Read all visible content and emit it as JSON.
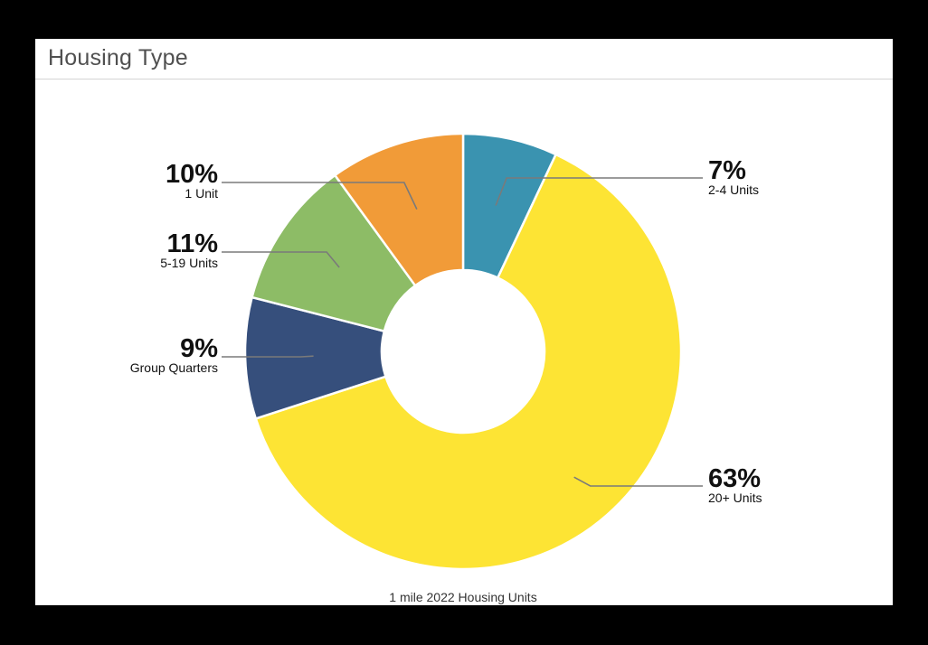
{
  "panel": {
    "title": "Housing Type"
  },
  "chart_data": {
    "type": "pie",
    "donut": true,
    "title": "Housing Type",
    "caption": "1 mile 2022 Housing Units",
    "slices": [
      {
        "label": "2-4 Units",
        "value": 7,
        "value_label": "7%",
        "color": "#3a93b0"
      },
      {
        "label": "20+ Units",
        "value": 63,
        "value_label": "63%",
        "color": "#fde434"
      },
      {
        "label": "Group Quarters",
        "value": 9,
        "value_label": "9%",
        "color": "#364f7c"
      },
      {
        "label": "5-19 Units",
        "value": 11,
        "value_label": "11%",
        "color": "#8dbc66"
      },
      {
        "label": "1 Unit",
        "value": 10,
        "value_label": "10%",
        "color": "#f19b38"
      }
    ]
  }
}
